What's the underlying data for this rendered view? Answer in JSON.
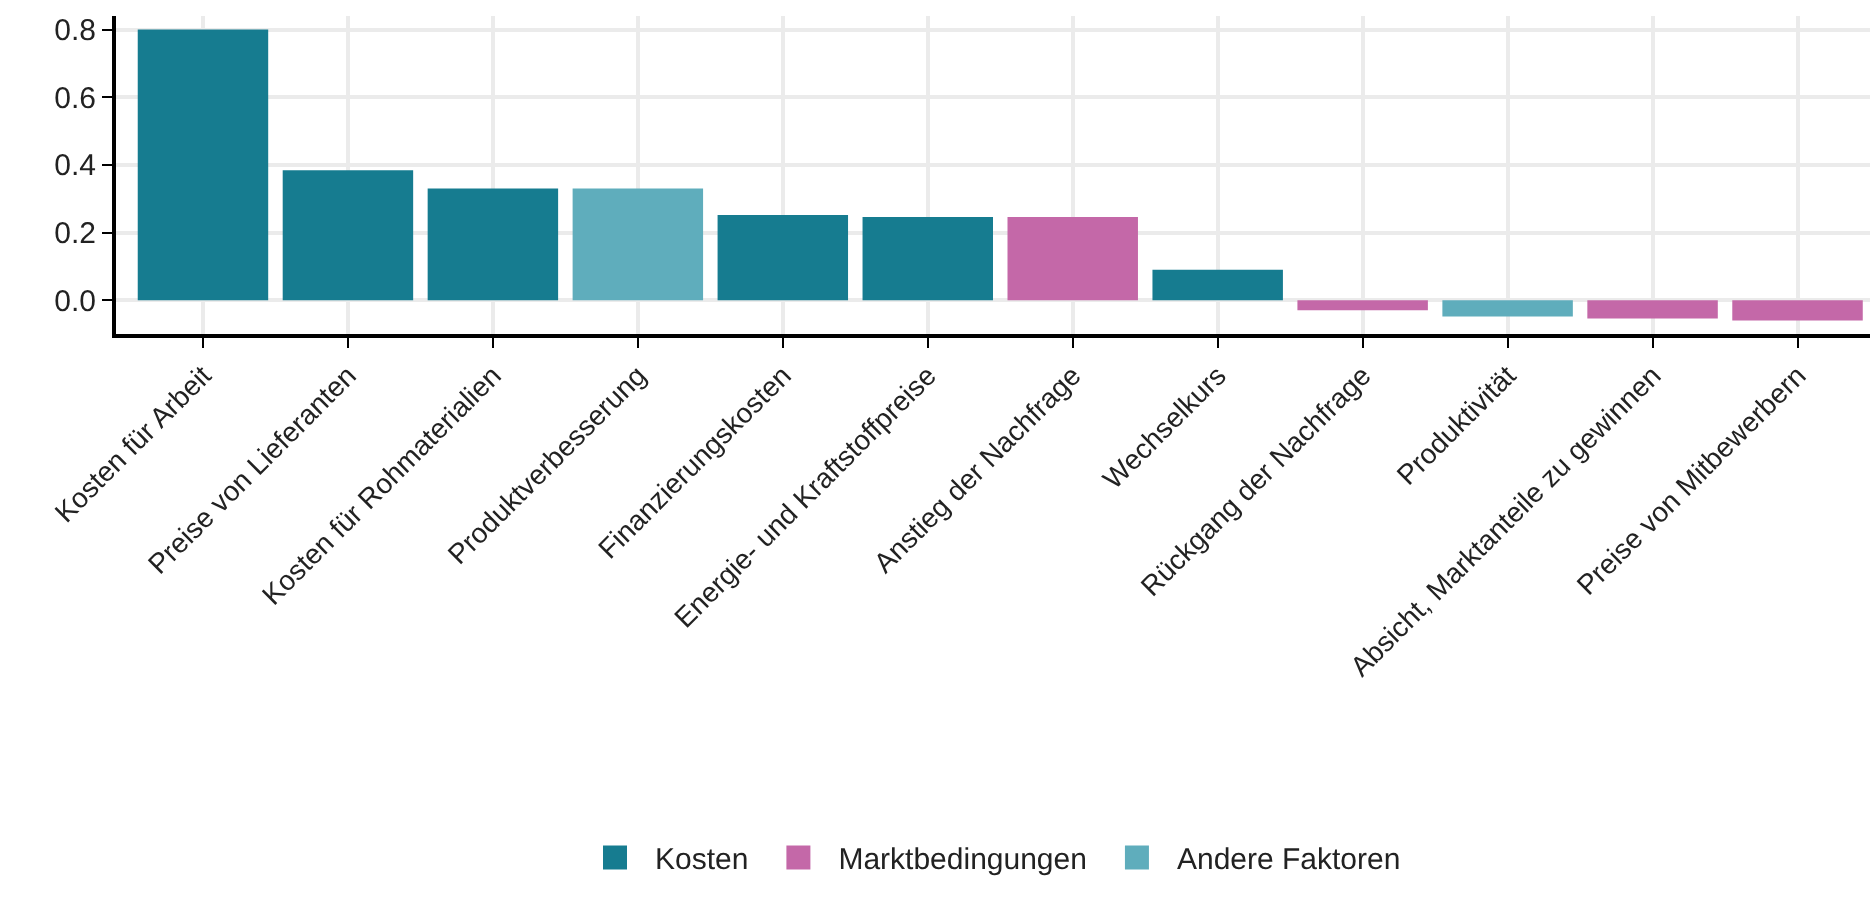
{
  "chart_data": {
    "type": "bar",
    "stacked": true,
    "categories": [
      "Kosten für Arbeit",
      "Preise von Lieferanten",
      "Kosten für Rohmaterialien",
      "Produktverbesserung",
      "Finanzierungskosten",
      "Energie- und Kraftstoffpreise",
      "Anstieg der Nachfrage",
      "Wechselkurs",
      "Rückgang der Nachfrage",
      "Produktivität",
      "Absicht, Marktanteile zu gewinnen",
      "Preise von Mitbewerbern"
    ],
    "series": [
      {
        "name": "Kosten",
        "color": "#167c90",
        "values": [
          0.8,
          0.384,
          0.33,
          null,
          0.252,
          0.246,
          null,
          0.09,
          null,
          null,
          null,
          null
        ]
      },
      {
        "name": "Marktbedingungen",
        "color": "#c468a8",
        "values": [
          null,
          null,
          null,
          null,
          null,
          null,
          0.246,
          null,
          -0.03,
          null,
          -0.054,
          -0.06
        ]
      },
      {
        "name": "Andere Faktoren",
        "color": "#5fadbc",
        "values": [
          null,
          null,
          null,
          0.33,
          null,
          null,
          null,
          null,
          null,
          -0.048,
          null,
          null
        ]
      }
    ],
    "ylim": [
      -0.1,
      0.84
    ],
    "yticks": [
      {
        "value": 0.0,
        "label": "0.0"
      },
      {
        "value": 0.2,
        "label": "0.2"
      },
      {
        "value": 0.4,
        "label": "0.4"
      },
      {
        "value": 0.6,
        "label": "0.6"
      },
      {
        "value": 0.8,
        "label": "0.8"
      }
    ],
    "grid": true,
    "legend": "bottom"
  }
}
